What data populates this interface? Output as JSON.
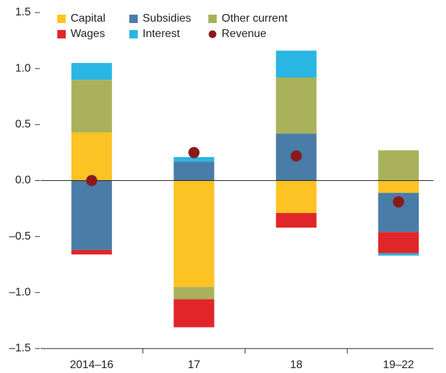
{
  "chart_data": {
    "type": "bar",
    "categories": [
      "2014–16",
      "17",
      "18",
      "19–22"
    ],
    "series": [
      {
        "name": "Capital",
        "color": "#fdc224",
        "values": [
          0.43,
          -0.95,
          -0.29,
          -0.11
        ]
      },
      {
        "name": "Subsidies",
        "color": "#4a7ca8",
        "values": [
          -0.62,
          0.17,
          0.42,
          -0.35
        ]
      },
      {
        "name": "Other current",
        "color": "#a9b25a",
        "values": [
          0.47,
          -0.11,
          0.5,
          0.27
        ]
      },
      {
        "name": "Wages",
        "color": "#e1262a",
        "values": [
          -0.04,
          -0.25,
          -0.13,
          -0.19
        ]
      },
      {
        "name": "Interest",
        "color": "#29b6e3",
        "values": [
          0.15,
          0.04,
          0.24,
          -0.02
        ]
      }
    ],
    "revenue": {
      "name": "Revenue",
      "color": "#8b1a1a",
      "values": [
        0.0,
        0.25,
        0.22,
        -0.19
      ]
    },
    "ylim": [
      -1.5,
      1.5
    ],
    "yticks": [
      {
        "value": -1.5,
        "label": "–1.5"
      },
      {
        "value": -1.0,
        "label": "–1.0"
      },
      {
        "value": -0.5,
        "label": "–0.5"
      },
      {
        "value": 0.0,
        "label": "0.0"
      },
      {
        "value": 0.5,
        "label": "0.5"
      },
      {
        "value": 1.0,
        "label": "1.0"
      },
      {
        "value": 1.5,
        "label": "1.5"
      }
    ]
  }
}
